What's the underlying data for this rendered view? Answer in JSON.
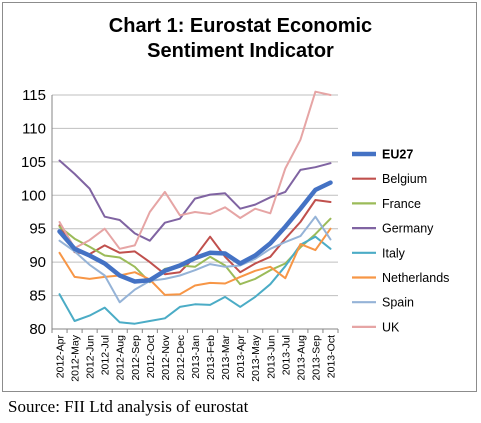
{
  "title_lines": [
    "Chart 1: Eurostat Economic",
    "Sentiment Indicator"
  ],
  "source": "Source: FII Ltd analysis of eurostat",
  "chart_data": {
    "type": "line",
    "title": "Chart 1: Eurostat Economic Sentiment Indicator",
    "ylim": [
      80,
      115
    ],
    "yticks": [
      80,
      85,
      90,
      95,
      100,
      105,
      110,
      115
    ],
    "grid": true,
    "legend": "right",
    "x": [
      "2012-Apr",
      "2012-May",
      "2012-Jun",
      "2012-Jul",
      "2012-Aug",
      "2012-Sep",
      "2012-Oct",
      "2012-Nov",
      "2012-Dec",
      "2013-Jan",
      "2013-Feb",
      "2013-Mar",
      "2013-Apr",
      "2013-May",
      "2013-Jun",
      "2013-Jul",
      "2013-Aug",
      "2013-Sep",
      "2013-Oct"
    ],
    "series": [
      {
        "name": "EU27",
        "color": "#4472c4",
        "bold": true,
        "values": [
          94.6,
          92.0,
          91.0,
          89.8,
          88.0,
          87.1,
          87.3,
          88.7,
          89.5,
          90.6,
          91.4,
          91.3,
          89.8,
          91.0,
          92.8,
          95.3,
          98.0,
          100.8,
          101.9
        ]
      },
      {
        "name": "Belgium",
        "color": "#c0504d",
        "values": [
          95.5,
          91.5,
          91.2,
          92.5,
          91.4,
          91.6,
          90.0,
          88.2,
          88.5,
          90.8,
          93.8,
          90.8,
          88.5,
          89.8,
          90.8,
          93.5,
          96.0,
          99.3,
          99.0
        ]
      },
      {
        "name": "France",
        "color": "#9bbb59",
        "values": [
          95.3,
          93.5,
          92.3,
          91.0,
          90.7,
          89.3,
          87.0,
          89.0,
          89.5,
          89.3,
          90.8,
          89.5,
          86.7,
          87.5,
          88.8,
          89.8,
          92.2,
          94.2,
          96.5
        ]
      },
      {
        "name": "Germany",
        "color": "#8064a2",
        "values": [
          105.2,
          103.2,
          101.0,
          96.8,
          96.3,
          94.3,
          93.2,
          95.9,
          96.5,
          99.5,
          100.1,
          100.3,
          98.0,
          98.6,
          99.7,
          100.5,
          103.8,
          104.2,
          104.8
        ]
      },
      {
        "name": "Italy",
        "color": "#4bacc6",
        "values": [
          85.2,
          81.2,
          82.0,
          83.2,
          81.0,
          80.8,
          81.2,
          81.6,
          83.3,
          83.7,
          83.6,
          84.8,
          83.3,
          84.8,
          86.7,
          89.4,
          92.6,
          93.8,
          92.0
        ]
      },
      {
        "name": "Netherlands",
        "color": "#f79646",
        "values": [
          91.4,
          87.8,
          87.5,
          87.8,
          88.0,
          88.5,
          87.4,
          85.1,
          85.2,
          86.5,
          86.9,
          86.8,
          87.8,
          88.7,
          89.3,
          87.6,
          92.7,
          91.8,
          95.0
        ]
      },
      {
        "name": "Spain",
        "color": "#95b3d7",
        "values": [
          93.2,
          91.6,
          89.6,
          88.0,
          84.0,
          85.9,
          87.2,
          87.5,
          88.0,
          88.8,
          89.7,
          89.3,
          89.5,
          90.5,
          92.0,
          93.0,
          93.9,
          96.8,
          93.4
        ]
      },
      {
        "name": "UK",
        "color": "#e6a5a5",
        "values": [
          96.0,
          92.1,
          93.3,
          95.0,
          92.0,
          92.5,
          97.5,
          100.5,
          97.0,
          97.5,
          97.2,
          98.2,
          96.6,
          98.0,
          97.3,
          104.0,
          108.3,
          115.5,
          115.0
        ]
      }
    ]
  }
}
